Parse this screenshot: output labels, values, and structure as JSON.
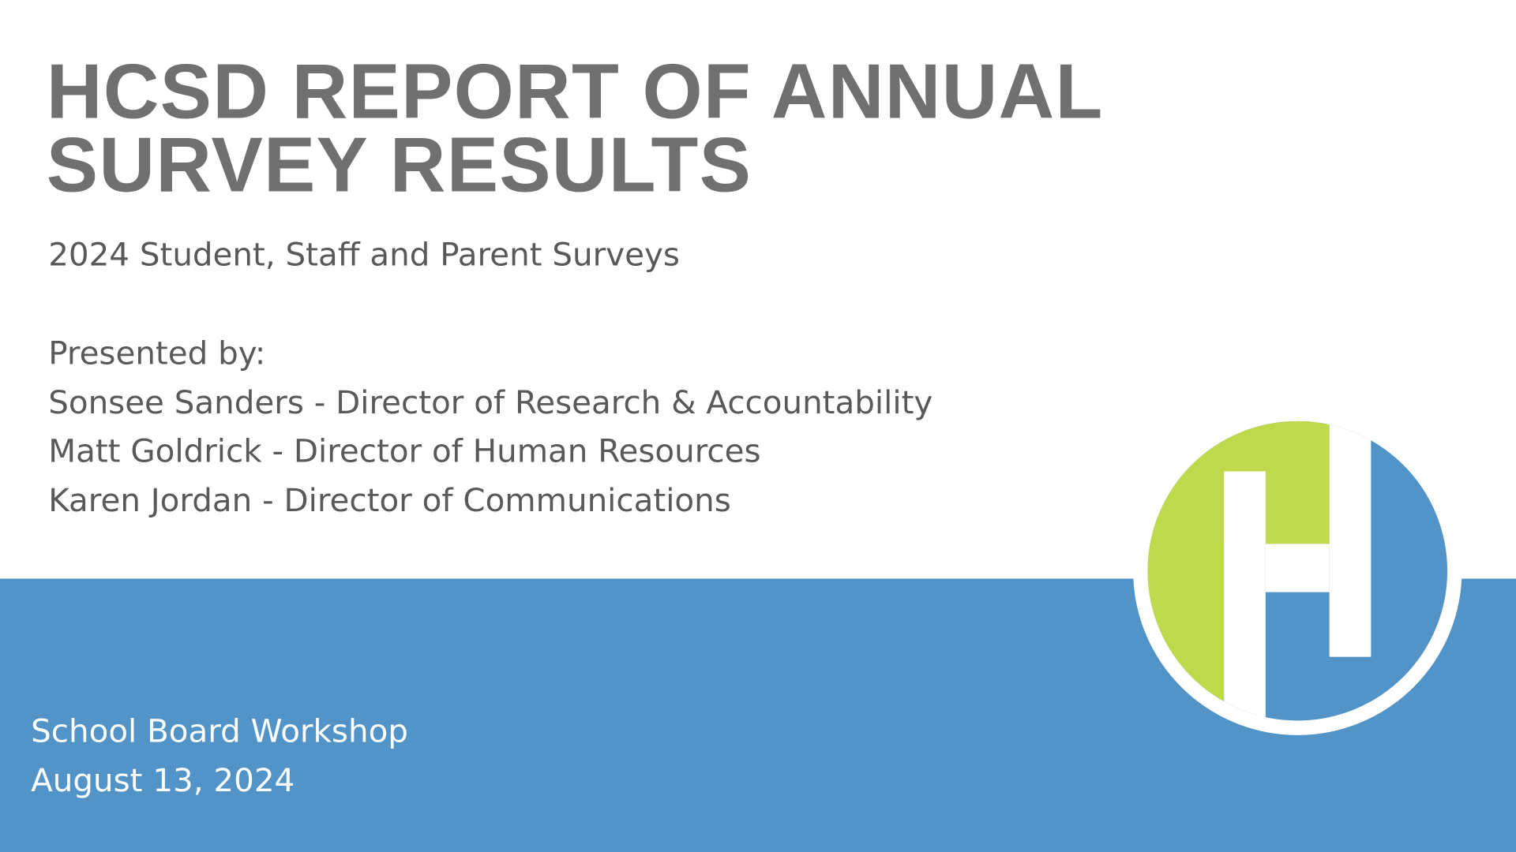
{
  "slide": {
    "title_lines": [
      "HCSD REPORT OF ANNUAL",
      "SURVEY RESULTS"
    ],
    "subtitle": "2024 Student, Staff and Parent Surveys",
    "presented_by": "Presented by:",
    "presenters": [
      "Sonsee Sanders - Director of Research & Accountability",
      "Matt Goldrick - Director of Human Resources",
      "Karen Jordan - Director of Communications"
    ],
    "footer_lines": [
      "School Board Workshop",
      "August 13, 2024"
    ]
  }
}
